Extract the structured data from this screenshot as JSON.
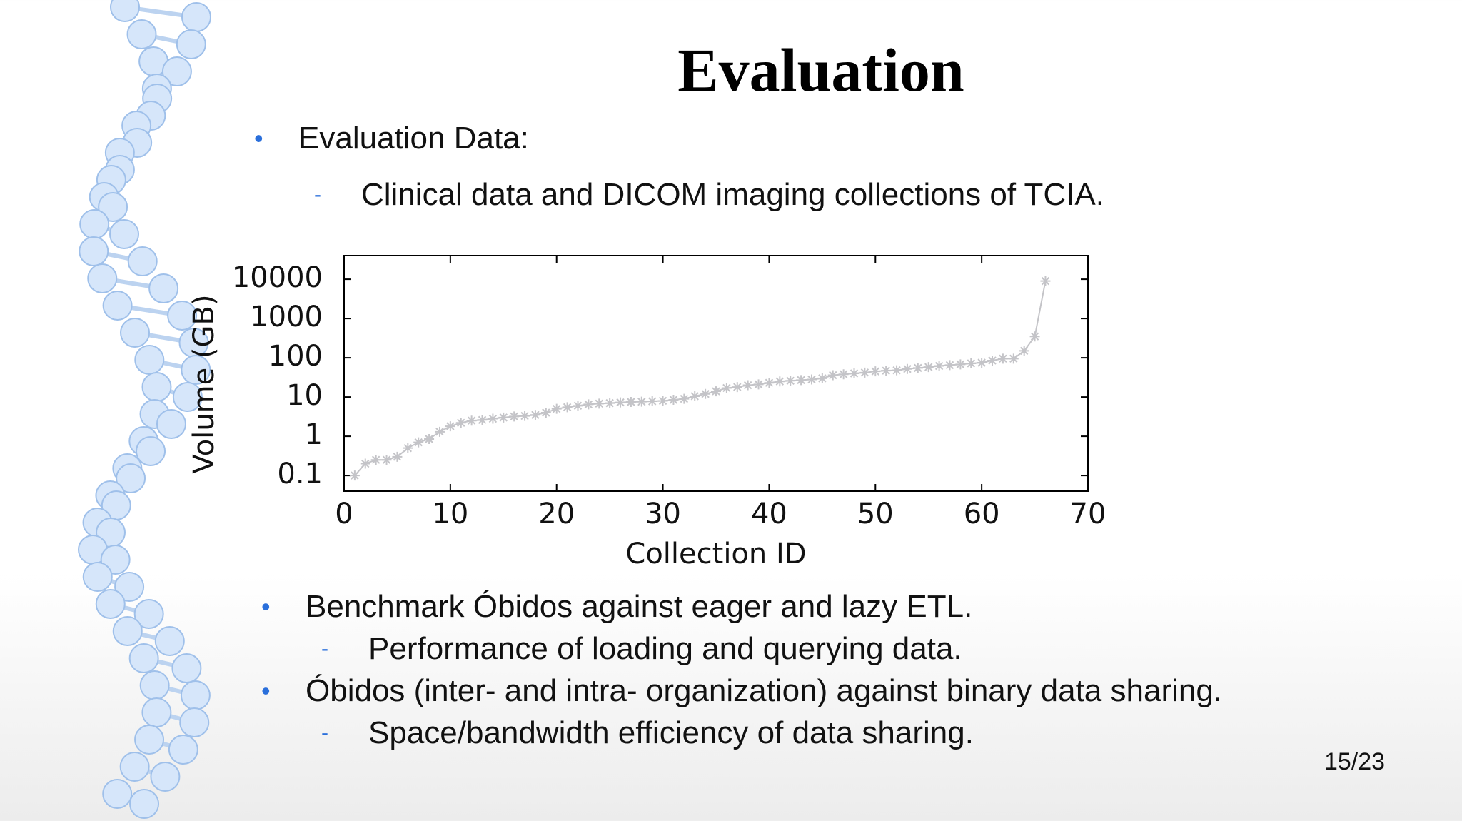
{
  "slide": {
    "title": "Evaluation",
    "bullets_top": [
      {
        "text": "Evaluation Data:",
        "subitems": [
          "Clinical data and DICOM imaging collections of TCIA."
        ]
      }
    ],
    "bullets_bottom": [
      {
        "text": "Benchmark Óbidos against eager and lazy ETL.",
        "subitems": [
          "Performance of loading and querying data."
        ]
      },
      {
        "text": "Óbidos (inter- and intra- organization) against binary data sharing.",
        "subitems": [
          "Space/bandwidth efficiency of data sharing."
        ]
      }
    ],
    "page_number": "15/23"
  },
  "chart_data": {
    "type": "line",
    "x_label": "Collection ID",
    "y_label": "Volume (GB)",
    "x": [
      1,
      2,
      3,
      4,
      5,
      6,
      7,
      8,
      9,
      10,
      11,
      12,
      13,
      14,
      15,
      16,
      17,
      18,
      19,
      20,
      21,
      22,
      23,
      24,
      25,
      26,
      27,
      28,
      29,
      30,
      31,
      32,
      33,
      34,
      35,
      36,
      37,
      38,
      39,
      40,
      41,
      42,
      43,
      44,
      45,
      46,
      47,
      48,
      49,
      50,
      51,
      52,
      53,
      54,
      55,
      56,
      57,
      58,
      59,
      60,
      61,
      62,
      63,
      64,
      65,
      66
    ],
    "series": [
      {
        "color": "#c4c4c8",
        "values": [
          0.1,
          0.2,
          0.25,
          0.25,
          0.3,
          0.5,
          0.7,
          0.85,
          1.3,
          1.8,
          2.2,
          2.5,
          2.6,
          2.8,
          3,
          3.2,
          3.3,
          3.5,
          4,
          5,
          5.5,
          6,
          6.5,
          6.8,
          7,
          7.3,
          7.5,
          7.6,
          7.8,
          8,
          8.5,
          9,
          10.5,
          12,
          14,
          17,
          18,
          20,
          21,
          23,
          25,
          26,
          27,
          28,
          30,
          36,
          38,
          40,
          42,
          45,
          47,
          48,
          52,
          55,
          58,
          62,
          65,
          68,
          72,
          75,
          85,
          95,
          95,
          150,
          350,
          9000
        ]
      }
    ],
    "xlim": [
      0,
      70
    ],
    "xticks": [
      0,
      10,
      20,
      30,
      40,
      50,
      60,
      70
    ],
    "ylim": [
      0.04,
      40000
    ],
    "yticks": [
      0.1,
      1,
      10,
      100,
      1000,
      10000
    ],
    "log_y": true,
    "grid": false
  }
}
